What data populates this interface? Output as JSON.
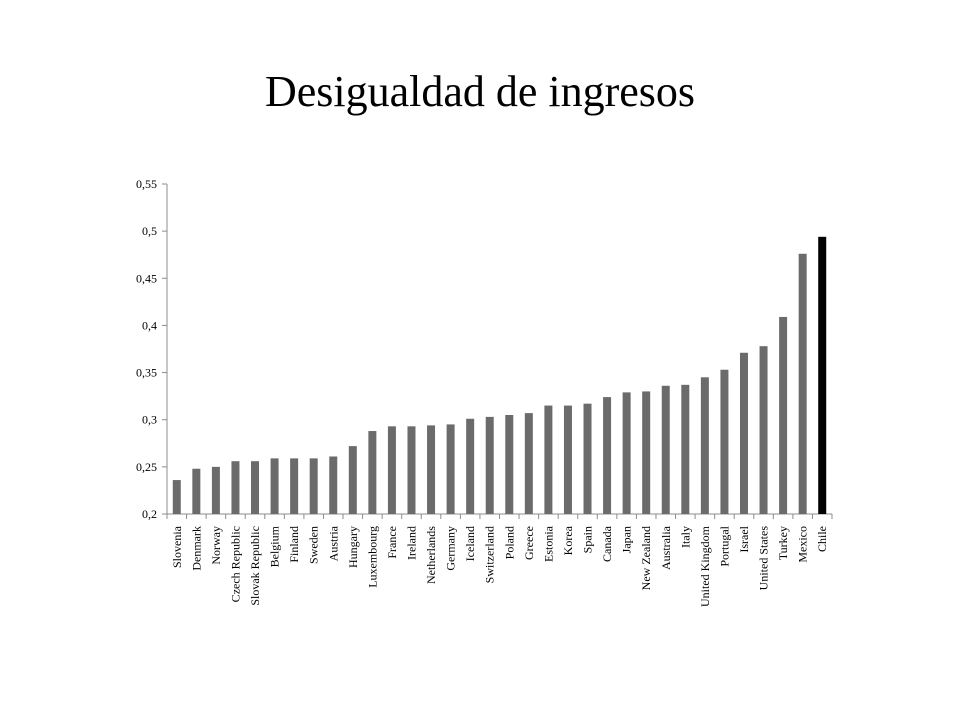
{
  "slide": {
    "title": "Desigualdad de ingresos"
  },
  "colors": {
    "bar_default": "#6b6b6b",
    "bar_highlight": "#000000",
    "axis": "#8c8c8c"
  },
  "chart_data": {
    "type": "bar",
    "title": "",
    "xlabel": "",
    "ylabel": "",
    "ylim": [
      0.2,
      0.55
    ],
    "yticks": [
      0.2,
      0.25,
      0.3,
      0.35,
      0.4,
      0.45,
      0.5,
      0.55
    ],
    "ytick_labels": [
      "0,2",
      "0,25",
      "0,3",
      "0,35",
      "0,4",
      "0,45",
      "0,5",
      "0,55"
    ],
    "grid": false,
    "legend": "none",
    "highlight_category": "Chile",
    "categories": [
      "Slovenia",
      "Denmark",
      "Norway",
      "Czech Republic",
      "Slovak Republic",
      "Belgium",
      "Finland",
      "Sweden",
      "Austria",
      "Hungary",
      "Luxembourg",
      "France",
      "Ireland",
      "Netherlands",
      "Germany",
      "Iceland",
      "Switzerland",
      "Poland",
      "Greece",
      "Estonia",
      "Korea",
      "Spain",
      "Canada",
      "Japan",
      "New Zealand",
      "Australia",
      "Italy",
      "United Kingdom",
      "Portugal",
      "Israel",
      "United States",
      "Turkey",
      "Mexico",
      "Chile"
    ],
    "values": [
      0.236,
      0.248,
      0.25,
      0.256,
      0.256,
      0.259,
      0.259,
      0.259,
      0.261,
      0.272,
      0.288,
      0.293,
      0.293,
      0.294,
      0.295,
      0.301,
      0.303,
      0.305,
      0.307,
      0.315,
      0.315,
      0.317,
      0.324,
      0.329,
      0.33,
      0.336,
      0.337,
      0.345,
      0.353,
      0.371,
      0.378,
      0.409,
      0.476,
      0.494
    ]
  }
}
